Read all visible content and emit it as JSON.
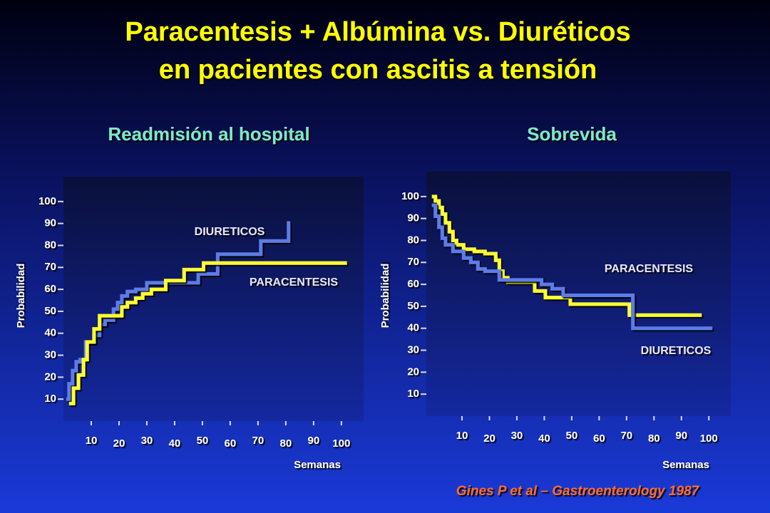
{
  "title_lines": [
    "Paracentesis + Albúmina vs. Diuréticos",
    "en pacientes con ascitis a tensión"
  ],
  "citation": "Gines P et al – Gastroenterology 1987",
  "chart_data": [
    {
      "type": "line",
      "step": true,
      "title": "Readmisión al hospital",
      "xlabel": "Semanas",
      "ylabel": "Probabilidad",
      "xlim": [
        0,
        108
      ],
      "ylim": [
        0,
        110
      ],
      "xticks": [
        10,
        20,
        30,
        40,
        50,
        60,
        70,
        80,
        90,
        100
      ],
      "yticks": [
        10,
        20,
        30,
        40,
        50,
        60,
        70,
        80,
        90,
        100
      ],
      "series": [
        {
          "name": "DIURETICOS",
          "color": "#5d7ce8",
          "x": [
            1,
            2,
            3.3,
            4.6,
            6,
            8,
            11,
            13,
            15,
            18,
            19.5,
            21,
            23,
            26,
            30,
            48.5,
            55.5,
            71,
            81
          ],
          "values": [
            10,
            17,
            23,
            27,
            28,
            36,
            39,
            44,
            46,
            51,
            54,
            57,
            59,
            60,
            63,
            67,
            76,
            82,
            91
          ]
        },
        {
          "name": "PARACENTESIS",
          "color": "#ffff33",
          "x": [
            2,
            3.6,
            5.4,
            7.2,
            8.5,
            11,
            13,
            21,
            23,
            26,
            28.5,
            31.6,
            36.8,
            43.4,
            50.4,
            102
          ],
          "values": [
            8,
            15,
            21,
            28,
            36,
            42,
            48,
            52,
            54,
            56,
            58,
            60,
            64,
            69,
            72,
            72
          ]
        }
      ]
    },
    {
      "type": "line",
      "step": true,
      "title": "Sobrevida",
      "xlabel": "Semanas",
      "ylabel": "Probabilidad",
      "xlim": [
        -3,
        108
      ],
      "ylim": [
        0,
        110
      ],
      "xticks": [
        10,
        20,
        30,
        40,
        50,
        60,
        70,
        80,
        90,
        100
      ],
      "yticks": [
        10,
        20,
        30,
        40,
        50,
        60,
        70,
        80,
        90,
        100
      ],
      "series": [
        {
          "name": "PARACENTESIS",
          "color": "#ffff33",
          "x": [
            -1,
            0.3,
            1.6,
            2.8,
            4,
            5.4,
            6.7,
            8,
            10.6,
            14.5,
            18.4,
            22.3,
            23.6,
            24.9,
            26.7,
            36.5,
            40.4,
            49.5,
            71,
            97.4
          ],
          "values": [
            100,
            98,
            95,
            92,
            88,
            84,
            80,
            78,
            76,
            75,
            74,
            71,
            66,
            63,
            61,
            57,
            54,
            51,
            46,
            46
          ]
        },
        {
          "name": "DIURETICOS",
          "color": "#5d7ce8",
          "x": [
            -1,
            0.3,
            1.6,
            2.8,
            4,
            6.7,
            10.6,
            13.2,
            15.8,
            18.4,
            23.6,
            39,
            42.9,
            46.9,
            72.3,
            101.3
          ],
          "values": [
            96,
            91,
            86,
            81,
            78,
            75,
            72,
            70,
            67,
            66,
            62,
            60,
            58,
            55,
            40,
            40
          ]
        }
      ]
    }
  ]
}
